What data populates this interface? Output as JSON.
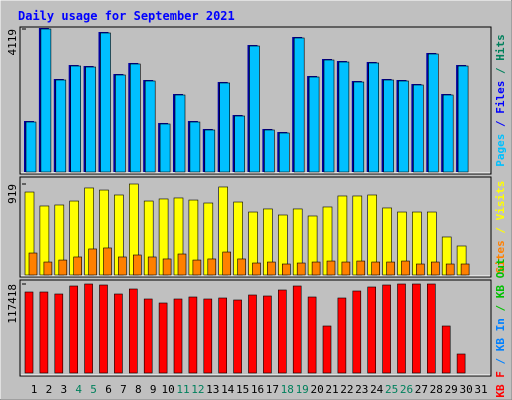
{
  "title": "Daily usage for September 2021",
  "chart_data": [
    {
      "type": "bar",
      "ylim": [
        0,
        4119
      ],
      "yticks": [
        4119
      ],
      "axis_label": [
        {
          "text": "Pages",
          "color": "#00c0ff"
        },
        {
          "text": "/",
          "color": "#0000ff"
        },
        {
          "text": "Files",
          "color": "#0000ff"
        },
        {
          "text": "/",
          "color": "#00805c"
        },
        {
          "text": "Hits",
          "color": "#00805c"
        }
      ],
      "series": [
        {
          "color": "#00c0ff",
          "shadow": "#0000a0",
          "values": [
            1440,
            4119,
            2650,
            3053,
            3024,
            4004,
            2794,
            3111,
            2621,
            1383,
            2218,
            1440,
            1210,
            2564,
            1613,
            3629,
            1210,
            1123,
            3860,
            2736,
            3226,
            3168,
            2592,
            3140,
            2650,
            2621,
            2506,
            3399,
            2218,
            3053,
            null
          ]
        }
      ]
    },
    {
      "type": "bar",
      "ylim": [
        0,
        919
      ],
      "yticks": [
        919
      ],
      "axis_label": [
        {
          "text": "Sites",
          "color": "#ff8000"
        },
        {
          "text": "/",
          "color": "#ffff00"
        },
        {
          "text": "Visits",
          "color": "#ffff00"
        }
      ],
      "series": [
        {
          "color": "#ffff00",
          "values": [
            838,
            697,
            707,
            747,
            879,
            858,
            808,
            919,
            747,
            768,
            778,
            757,
            727,
            889,
            737,
            636,
            667,
            606,
            667,
            596,
            687,
            798,
            798,
            808,
            677,
            636,
            636,
            636,
            384,
            293,
            null
          ]
        },
        {
          "color": "#ff8000",
          "values": [
            222,
            131,
            151,
            182,
            263,
            273,
            182,
            202,
            182,
            162,
            212,
            151,
            162,
            232,
            162,
            121,
            131,
            111,
            121,
            131,
            141,
            131,
            141,
            131,
            131,
            141,
            111,
            131,
            111,
            111,
            null
          ]
        }
      ]
    },
    {
      "type": "bar",
      "ylim": [
        0,
        117418
      ],
      "yticks": [
        117418
      ],
      "axis_label": [
        {
          "text": "KB F",
          "color": "#ff0000"
        },
        {
          "text": "/",
          "color": "#0080ff"
        },
        {
          "text": "KB In",
          "color": "#0080ff"
        },
        {
          "text": "/",
          "color": "#00c000"
        },
        {
          "text": "KB Out",
          "color": "#00c000"
        }
      ],
      "series": [
        {
          "color": "#ff0000",
          "values": [
            106863,
            106863,
            104224,
            114779,
            117418,
            116099,
            104224,
            110821,
            97627,
            92350,
            97627,
            100266,
            97627,
            98946,
            96308,
            102905,
            101586,
            109502,
            114779,
            100266,
            62006,
            98946,
            108182,
            113460,
            116099,
            117418,
            117418,
            117418,
            62006,
            25067,
            null
          ]
        }
      ],
      "categories": [
        1,
        2,
        3,
        4,
        5,
        6,
        7,
        8,
        9,
        10,
        11,
        12,
        13,
        14,
        15,
        16,
        17,
        18,
        19,
        20,
        21,
        22,
        23,
        24,
        25,
        26,
        27,
        28,
        29,
        30,
        31
      ],
      "category_colors": [
        "#000",
        "#000",
        "#000",
        "#00805c",
        "#00805c",
        "#000",
        "#000",
        "#000",
        "#000",
        "#000",
        "#00805c",
        "#00805c",
        "#000",
        "#000",
        "#000",
        "#000",
        "#000",
        "#00805c",
        "#00805c",
        "#000",
        "#000",
        "#000",
        "#000",
        "#000",
        "#00805c",
        "#00805c",
        "#000",
        "#000",
        "#000",
        "#000",
        "#000"
      ]
    }
  ]
}
